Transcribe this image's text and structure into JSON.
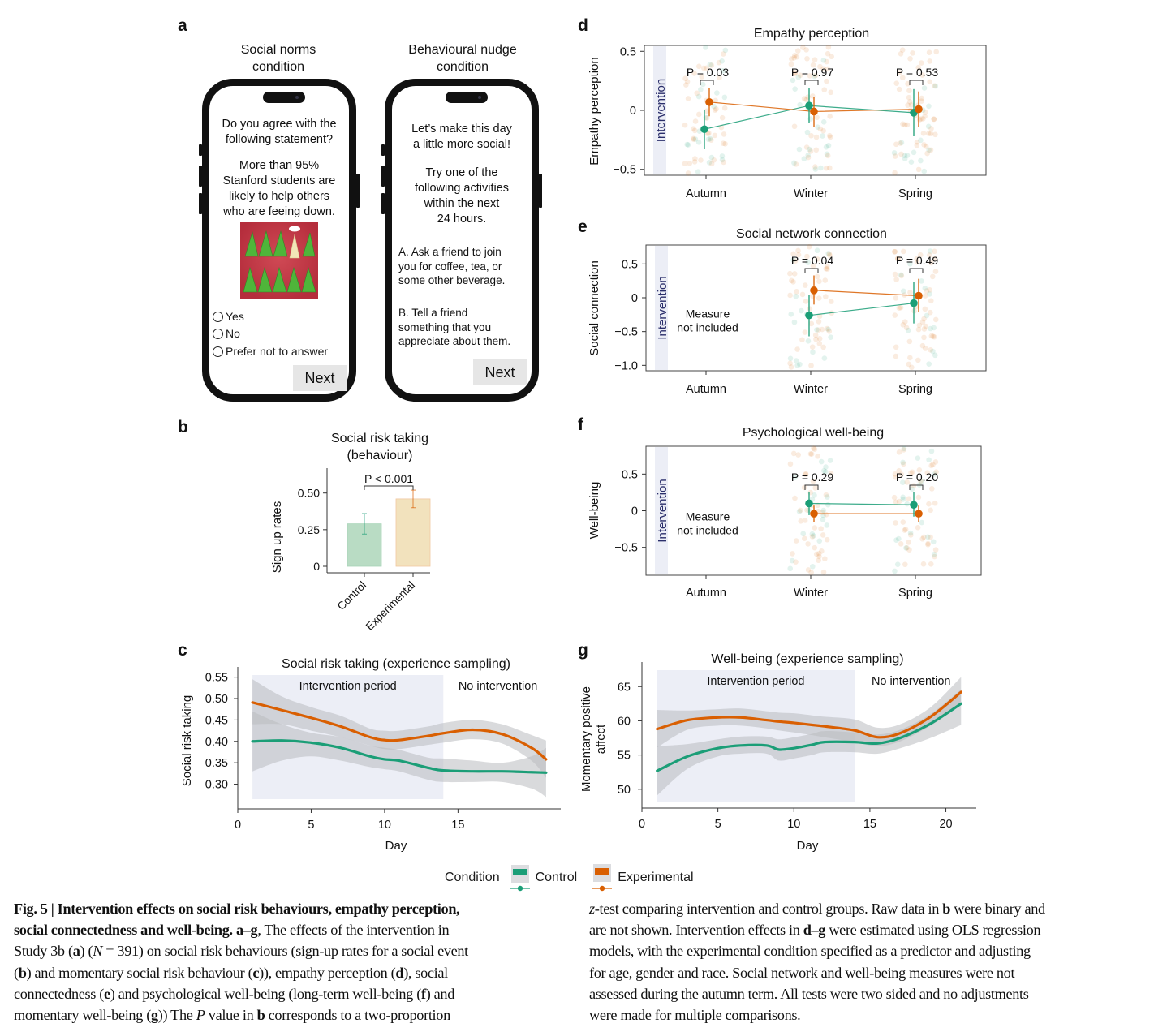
{
  "figure": {
    "panel_letters": [
      "a",
      "b",
      "c",
      "d",
      "e",
      "f",
      "g"
    ]
  },
  "panel_a": {
    "phone_left": {
      "title_line1": "Social norms",
      "title_line2": "condition",
      "question_line1": "Do you agree with the",
      "question_line2": "following statement?",
      "statement_line1": "More than 95%",
      "statement_line2": "Stanford students are",
      "statement_line3": "likely to help others",
      "statement_line4": "who are feeing down.",
      "image_alt": "cartoon-trees-holding-hands",
      "options": [
        "Yes",
        "No",
        "Prefer not to answer"
      ],
      "next_label": "Next"
    },
    "phone_right": {
      "title_line1": "Behavioural nudge",
      "title_line2": "condition",
      "intro_line1": "Let’s make this day",
      "intro_line2": "a little more social!",
      "try_line1": "Try one of the",
      "try_line2": "following activities",
      "try_line3": "within the next",
      "try_line4": "24 hours.",
      "option_a_line1": "A. Ask a friend to join",
      "option_a_line2": "you for coffee, tea, or",
      "option_a_line3": "some other beverage.",
      "option_b_line1": "B.  Tell a friend",
      "option_b_line2": "something that you",
      "option_b_line3": "appreciate about them.",
      "next_label": "Next"
    }
  },
  "legend": {
    "title": "Condition",
    "items": [
      {
        "label": "Control",
        "color": "#1b9e77"
      },
      {
        "label": "Experimental",
        "color": "#d95f02"
      }
    ]
  },
  "colors": {
    "control": "#1b9e77",
    "experimental": "#d95f02",
    "control_bar": "#b9dcc4",
    "experimental_bar": "#f2e2bd",
    "intervention_band": "#eceef6",
    "intervention_text": "#2b2f6b",
    "ci_band": "#b9bbc0"
  },
  "chart_data": [
    {
      "id": "b",
      "type": "bar",
      "title_line1": "Social risk taking",
      "title_line2": "(behaviour)",
      "xlabel": "",
      "ylabel": "Sign up rates",
      "categories": [
        "Control",
        "Experimental"
      ],
      "values": [
        0.29,
        0.46
      ],
      "error_low": [
        0.22,
        0.4
      ],
      "error_high": [
        0.36,
        0.52
      ],
      "yticks": [
        0,
        0.25,
        0.5
      ],
      "ytick_labels": [
        "0",
        "0.25",
        "0.50"
      ],
      "ylim": [
        0,
        0.67
      ],
      "annotation": "P < 0.001"
    },
    {
      "id": "c",
      "type": "line",
      "title": "Social risk taking (experience sampling)",
      "xlabel": "Day",
      "ylabel": "Social risk taking",
      "xlim": [
        0,
        22
      ],
      "ylim": [
        0.265,
        0.555
      ],
      "xticks": [
        0,
        5,
        10,
        15
      ],
      "yticks": [
        0.3,
        0.35,
        0.4,
        0.45,
        0.5,
        0.55
      ],
      "ytick_labels": [
        "0.30",
        "0.35",
        "0.40",
        "0.45",
        "0.50",
        "0.55"
      ],
      "shaded_regions": [
        {
          "label": "Intervention period",
          "x0": 1,
          "x1": 14
        }
      ],
      "region_labels": [
        "Intervention period",
        "No intervention"
      ],
      "x": [
        1,
        3,
        5,
        7,
        9,
        10,
        11,
        13,
        14,
        16,
        18,
        20,
        21
      ],
      "series": [
        {
          "name": "Control",
          "values": [
            0.4,
            0.402,
            0.397,
            0.385,
            0.365,
            0.358,
            0.355,
            0.338,
            0.332,
            0.33,
            0.33,
            0.328,
            0.327
          ],
          "ci_low": [
            0.33,
            0.355,
            0.365,
            0.355,
            0.34,
            0.335,
            0.33,
            0.31,
            0.305,
            0.305,
            0.305,
            0.29,
            0.27
          ],
          "ci_high": [
            0.47,
            0.44,
            0.42,
            0.41,
            0.39,
            0.385,
            0.38,
            0.362,
            0.36,
            0.355,
            0.35,
            0.365,
            0.385
          ]
        },
        {
          "name": "Experimental",
          "values": [
            0.491,
            0.473,
            0.455,
            0.435,
            0.41,
            0.403,
            0.403,
            0.413,
            0.419,
            0.427,
            0.417,
            0.385,
            0.358
          ],
          "ci_low": [
            0.44,
            0.44,
            0.425,
            0.41,
            0.39,
            0.382,
            0.382,
            0.392,
            0.397,
            0.405,
            0.395,
            0.355,
            0.315
          ],
          "ci_high": [
            0.545,
            0.505,
            0.48,
            0.46,
            0.43,
            0.425,
            0.425,
            0.435,
            0.443,
            0.45,
            0.44,
            0.415,
            0.402
          ]
        }
      ]
    },
    {
      "id": "d",
      "type": "scatter",
      "title": "Empathy perception",
      "xlabel": "",
      "ylabel": "Empathy perception",
      "categories": [
        "Autumn",
        "Winter",
        "Spring"
      ],
      "ylim": [
        -0.55,
        0.55
      ],
      "yticks": [
        -0.5,
        0,
        0.5
      ],
      "ytick_labels": [
        "−0.5",
        "0",
        "0.5"
      ],
      "band_label": "Intervention",
      "measure_not_included": [],
      "p_values": [
        "P = 0.03",
        "P = 0.97",
        "P = 0.53"
      ],
      "series": [
        {
          "name": "Control",
          "values": [
            -0.16,
            0.04,
            -0.02
          ],
          "ci_low": [
            -0.33,
            -0.11,
            -0.22
          ],
          "ci_high": [
            0.0,
            0.19,
            0.18
          ]
        },
        {
          "name": "Experimental",
          "values": [
            0.07,
            -0.01,
            0.01
          ],
          "ci_low": [
            -0.05,
            -0.14,
            -0.14
          ],
          "ci_high": [
            0.19,
            0.11,
            0.16
          ]
        }
      ]
    },
    {
      "id": "e",
      "type": "scatter",
      "title": "Social network connection",
      "xlabel": "",
      "ylabel": "Social connection",
      "categories": [
        "Autumn",
        "Winter",
        "Spring"
      ],
      "ylim": [
        -1.08,
        0.78
      ],
      "yticks": [
        -1.0,
        -0.5,
        0,
        0.5
      ],
      "ytick_labels": [
        "−1.0",
        "−0.5",
        "0",
        "0.5"
      ],
      "band_label": "Intervention",
      "measure_not_included": [
        "Measure",
        "not included"
      ],
      "p_values": [
        "",
        "P = 0.04",
        "P = 0.49"
      ],
      "series": [
        {
          "name": "Control",
          "values": [
            null,
            -0.26,
            -0.08
          ],
          "ci_low": [
            null,
            -0.57,
            -0.38
          ],
          "ci_high": [
            null,
            0.04,
            0.23
          ]
        },
        {
          "name": "Experimental",
          "values": [
            null,
            0.11,
            0.03
          ],
          "ci_low": [
            null,
            -0.1,
            -0.21
          ],
          "ci_high": [
            null,
            0.33,
            0.28
          ]
        }
      ]
    },
    {
      "id": "f",
      "type": "scatter",
      "title": "Psychological well-being",
      "xlabel": "",
      "ylabel": "Well-being",
      "categories": [
        "Autumn",
        "Winter",
        "Spring"
      ],
      "ylim": [
        -0.88,
        0.88
      ],
      "yticks": [
        -0.5,
        0,
        0.5
      ],
      "ytick_labels": [
        "−0.5",
        "0",
        "0.5"
      ],
      "band_label": "Intervention",
      "measure_not_included": [
        "Measure",
        "not included"
      ],
      "p_values": [
        "",
        "P = 0.29",
        "P = 0.20"
      ],
      "series": [
        {
          "name": "Control",
          "values": [
            null,
            0.1,
            0.08
          ],
          "ci_low": [
            null,
            -0.06,
            -0.08
          ],
          "ci_high": [
            null,
            0.25,
            0.25
          ]
        },
        {
          "name": "Experimental",
          "values": [
            null,
            -0.04,
            -0.04
          ],
          "ci_low": [
            null,
            -0.16,
            -0.16
          ],
          "ci_high": [
            null,
            0.07,
            0.07
          ]
        }
      ]
    },
    {
      "id": "g",
      "type": "line",
      "title": "Well-being (experience sampling)",
      "xlabel": "Day",
      "ylabel_line1": "Momentary positive",
      "ylabel_line2": "affect",
      "xlim": [
        0,
        22
      ],
      "ylim": [
        48.2,
        67.4
      ],
      "xticks": [
        0,
        5,
        10,
        15,
        20
      ],
      "yticks": [
        50,
        55,
        60,
        65
      ],
      "ytick_labels": [
        "50",
        "55",
        "60",
        "65"
      ],
      "shaded_regions": [
        {
          "label": "Intervention period",
          "x0": 1,
          "x1": 14
        }
      ],
      "region_labels": [
        "Intervention period",
        "No intervention"
      ],
      "x": [
        1,
        3,
        5,
        6.5,
        8.2,
        9,
        10,
        11.2,
        12,
        14,
        15.5,
        17,
        19,
        21
      ],
      "series": [
        {
          "name": "Control",
          "values": [
            52.7,
            54.8,
            56.0,
            56.4,
            56.4,
            55.8,
            56.0,
            56.5,
            56.9,
            56.9,
            56.7,
            57.5,
            59.6,
            62.5
          ],
          "ci_low": [
            49.1,
            53.0,
            54.8,
            55.2,
            55.2,
            54.2,
            54.5,
            55.0,
            55.4,
            55.4,
            55.2,
            56.0,
            57.5,
            59.4
          ],
          "ci_high": [
            56.3,
            56.6,
            57.3,
            57.7,
            57.7,
            57.3,
            57.6,
            58.1,
            58.5,
            58.3,
            58.0,
            58.7,
            61.0,
            64.6
          ]
        },
        {
          "name": "Experimental",
          "values": [
            58.8,
            60.1,
            60.5,
            60.5,
            60.1,
            59.9,
            59.7,
            59.4,
            59.2,
            58.6,
            57.6,
            58.2,
            60.6,
            64.2
          ],
          "ci_low": [
            56.1,
            58.7,
            59.3,
            59.3,
            58.9,
            58.6,
            58.3,
            57.9,
            57.6,
            56.9,
            56.3,
            57.0,
            59.3,
            62.4
          ],
          "ci_high": [
            61.6,
            61.5,
            61.7,
            61.8,
            61.4,
            61.2,
            61.1,
            60.8,
            60.6,
            60.2,
            59.0,
            59.5,
            62.0,
            66.4
          ]
        }
      ]
    }
  ],
  "caption": {
    "left": {
      "bold_lead": "Fig. 5 | Intervention effects on social risk behaviours, empathy perception, social connectedness and well-being. a–g",
      "line1": "Fig. 5 | Intervention effects on social risk behaviours, empathy perception,",
      "line2_bold": "social connectedness and well-being. a–g",
      "line2_rest": ", The effects of the intervention in",
      "line3_a": "Study 3b (",
      "line3_b": "a",
      "line3_c": ") (",
      "line3_d": "N",
      "line3_e": " = 391) on social risk behaviours (sign-up rates for a social event",
      "line4_a": "(",
      "line4_b": "b",
      "line4_c": ") and momentary social risk behaviour (",
      "line4_d": "c",
      "line4_e": ")), empathy perception (",
      "line4_f": "d",
      "line4_g": "), social",
      "line5_a": "connectedness (",
      "line5_b": "e",
      "line5_c": ") and psychological well-being (long-term well-being (",
      "line5_d": "f",
      "line5_e": ") and",
      "line6_a": "momentary well-being (",
      "line6_b": "g",
      "line6_c": ")) The ",
      "line6_d": "P",
      "line6_e": " value in ",
      "line6_f": "b",
      "line6_g": " corresponds to a two-proportion"
    },
    "right": {
      "line1_a": "z",
      "line1_b": "-test comparing intervention and control groups. Raw data in ",
      "line1_c": "b",
      "line1_d": " were binary and",
      "line2_a": "are not shown. Intervention effects in ",
      "line2_b": "d–g",
      "line2_c": " were estimated using OLS regression",
      "line3": "models, with the experimental condition specified as a predictor and adjusting",
      "line4": "for age, gender and race. Social network and well-being measures were not",
      "line5": "assessed during the autumn term. All tests were two sided and no adjustments",
      "line6": "were made for multiple comparisons."
    }
  }
}
